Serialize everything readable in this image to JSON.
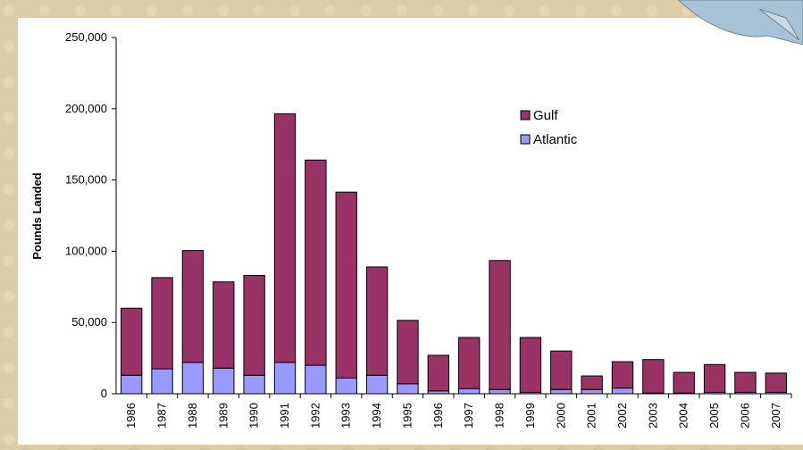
{
  "chart_data": {
    "type": "stacked-bar",
    "y_label": "Pounds Landed",
    "categories": [
      "1986",
      "1987",
      "1988",
      "1989",
      "1990",
      "1991",
      "1992",
      "1993",
      "1994",
      "1995",
      "1996",
      "1997",
      "1998",
      "1999",
      "2000",
      "2001",
      "2002",
      "2003",
      "2004",
      "2005",
      "2006",
      "2007"
    ],
    "series": [
      {
        "name": "Atlantic",
        "color": "#9999ff",
        "values": [
          13000,
          17500,
          22000,
          18000,
          13000,
          22000,
          20000,
          11000,
          13000,
          7000,
          2000,
          3500,
          3000,
          1000,
          3000,
          3000,
          4000,
          500,
          500,
          1000,
          1000,
          1000
        ]
      },
      {
        "name": "Gulf",
        "color": "#993366",
        "values": [
          47000,
          64000,
          78500,
          60500,
          70000,
          174500,
          144000,
          130500,
          76000,
          44500,
          25000,
          36000,
          90500,
          38500,
          27000,
          9500,
          18500,
          23500,
          14500,
          19500,
          14000,
          13500
        ]
      }
    ],
    "ylim": [
      0,
      250000
    ],
    "yticks": [
      0,
      {
        "value": 50000,
        "label": "50,000"
      },
      {
        "value": 100000,
        "label": "100,000"
      },
      {
        "value": 150000,
        "label": "150,000"
      },
      {
        "value": 200000,
        "label": "200,000"
      },
      {
        "value": 250000,
        "label": "250,000"
      }
    ],
    "legend": "upper-right"
  }
}
